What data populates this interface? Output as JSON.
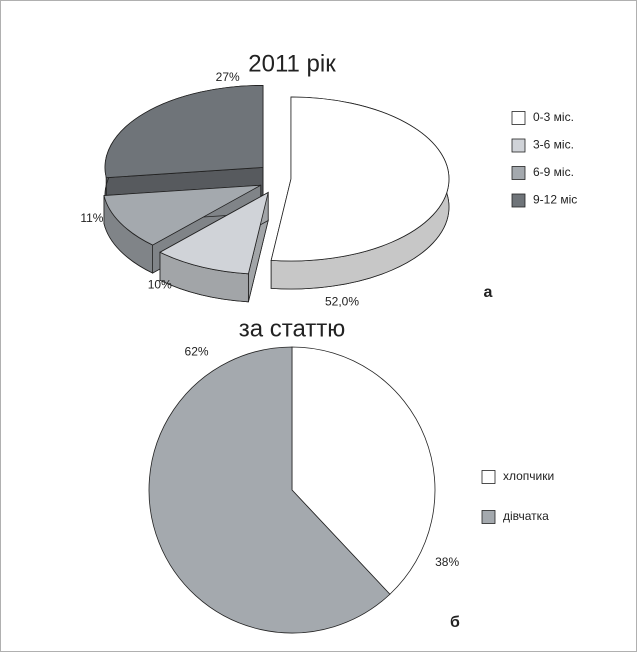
{
  "chart_data": [
    {
      "type": "pie",
      "title": "2011 рік",
      "three_d": true,
      "exploded": true,
      "categories": [
        "0-3 міс.",
        "3-6 міс.",
        "6-9 міс.",
        "9-12 міс"
      ],
      "values": [
        52,
        10,
        11,
        27
      ],
      "value_labels": [
        "52,0%",
        "10%",
        "11%",
        "27%"
      ],
      "colors": [
        "#ffffff",
        "#d0d3d8",
        "#a4a9ae",
        "#6f7479"
      ],
      "panel_label": "а"
    },
    {
      "type": "pie",
      "title": "за статтю",
      "categories": [
        "хлопчики",
        "дівчатка"
      ],
      "values": [
        38,
        62
      ],
      "value_labels": [
        "38%",
        "62%"
      ],
      "colors": [
        "#ffffff",
        "#a4a9ae"
      ],
      "panel_label": "б"
    }
  ]
}
